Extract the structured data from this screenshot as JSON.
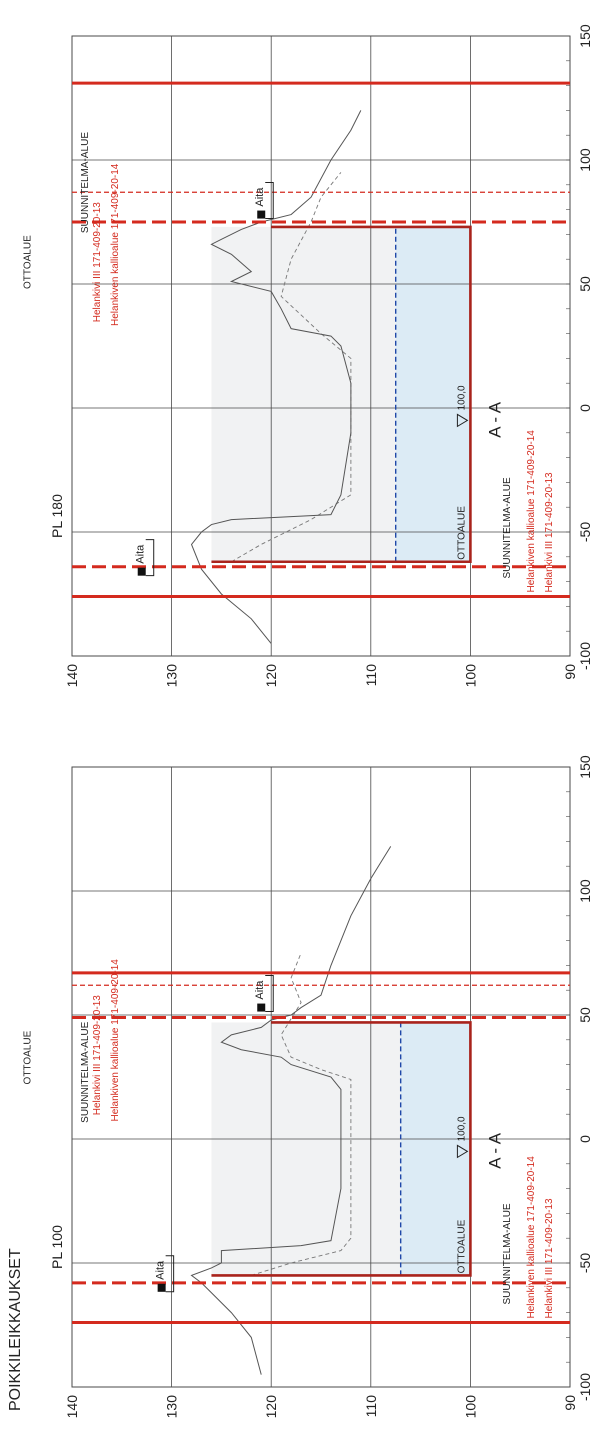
{
  "sheet_title": "POIKKILEIKKAUKSET",
  "legend_words": {
    "suunnitelma": "SUUNNITELMA-ALUE",
    "ottoalue": "OTTOALUE",
    "aita": "Aita",
    "kallio_14": "Helankiven kallioalue 171-409-20-14",
    "helankivi_13": "Helankivi III 171-409-20-13",
    "level": "100,0",
    "section_mark": "A - A"
  },
  "colors": {
    "grid": "#4a4a4a",
    "boundary": "#d42a1e",
    "dig": "#a9231c",
    "fill": "#dcebf5",
    "water": "#1f48a8",
    "ground": "#555555"
  },
  "chart_data": [
    {
      "type": "cross-section",
      "title": "PL 100",
      "xlim": [
        -100,
        150
      ],
      "ylim": [
        90,
        140
      ],
      "x_ticks": [
        "-100",
        "-50",
        "0",
        "50",
        "100",
        "150"
      ],
      "y_ticks": [
        "90",
        "100",
        "110",
        "120",
        "130",
        "140"
      ],
      "dig_area": {
        "x_left": -55,
        "x_right": 47,
        "bottom": 100,
        "water_level": 107
      },
      "fences": [
        {
          "x": -60,
          "elev": 131
        },
        {
          "x": 53,
          "elev": 121
        }
      ],
      "boundary_lines": [
        {
          "x": -74,
          "style": "solid",
          "name": "helankivi_13"
        },
        {
          "x": -58,
          "style": "dashed",
          "name": "kallio_14"
        },
        {
          "x": 49,
          "style": "dashed",
          "name": "kallio_14"
        },
        {
          "x": 62,
          "style": "thin-dashed",
          "name": "kallio_14"
        },
        {
          "x": 67,
          "style": "solid",
          "name": "helankivi_13"
        }
      ],
      "ground_profile": [
        [
          -95,
          121
        ],
        [
          -80,
          122
        ],
        [
          -70,
          124
        ],
        [
          -62,
          126
        ],
        [
          -58,
          127
        ],
        [
          -55,
          128
        ],
        [
          -52,
          126
        ],
        [
          -50,
          125
        ],
        [
          -45,
          125
        ],
        [
          -43,
          117
        ],
        [
          -41,
          114
        ],
        [
          -20,
          113
        ],
        [
          0,
          113
        ],
        [
          20,
          113
        ],
        [
          25,
          114
        ],
        [
          30,
          118
        ],
        [
          33,
          119
        ],
        [
          36,
          123
        ],
        [
          39,
          125
        ],
        [
          42,
          124
        ],
        [
          45,
          121
        ],
        [
          48,
          120
        ],
        [
          50,
          118
        ],
        [
          53,
          117
        ],
        [
          58,
          115
        ],
        [
          70,
          114
        ],
        [
          90,
          112
        ],
        [
          105,
          110
        ],
        [
          118,
          108
        ]
      ],
      "previous_profile": [
        [
          -55,
          122
        ],
        [
          -50,
          118
        ],
        [
          -45,
          113
        ],
        [
          -40,
          112
        ],
        [
          0,
          112
        ],
        [
          24,
          112
        ],
        [
          28,
          115
        ],
        [
          33,
          118
        ],
        [
          42,
          119
        ],
        [
          55,
          117
        ],
        [
          65,
          118
        ],
        [
          75,
          117
        ]
      ]
    },
    {
      "type": "cross-section",
      "title": "PL 180",
      "xlim": [
        -100,
        150
      ],
      "ylim": [
        90,
        140
      ],
      "x_ticks": [
        "-100",
        "-50",
        "0",
        "50",
        "100",
        "150"
      ],
      "y_ticks": [
        "90",
        "100",
        "110",
        "120",
        "130",
        "140"
      ],
      "dig_area": {
        "x_left": -62,
        "x_right": 73,
        "bottom": 100,
        "water_level": 107.5
      },
      "fences": [
        {
          "x": -66,
          "elev": 133
        },
        {
          "x": 78,
          "elev": 121
        }
      ],
      "boundary_lines": [
        {
          "x": -76,
          "style": "solid",
          "name": "helankivi_13"
        },
        {
          "x": -64,
          "style": "dashed",
          "name": "kallio_14"
        },
        {
          "x": 75,
          "style": "dashed",
          "name": "kallio_14"
        },
        {
          "x": 87,
          "style": "thin-dashed",
          "name": "helankivi_13"
        },
        {
          "x": 131,
          "style": "solid",
          "name": "suunnitelma"
        }
      ],
      "ground_profile": [
        [
          -95,
          120
        ],
        [
          -85,
          122
        ],
        [
          -75,
          125
        ],
        [
          -65,
          127
        ],
        [
          -55,
          128
        ],
        [
          -50,
          127
        ],
        [
          -47,
          126
        ],
        [
          -45,
          124
        ],
        [
          -43,
          114
        ],
        [
          -35,
          113
        ],
        [
          -10,
          112
        ],
        [
          10,
          112
        ],
        [
          25,
          113
        ],
        [
          29,
          114
        ],
        [
          32,
          118
        ],
        [
          40,
          119
        ],
        [
          47,
          120
        ],
        [
          51,
          124
        ],
        [
          55,
          122
        ],
        [
          62,
          124
        ],
        [
          66,
          126
        ],
        [
          68,
          125
        ],
        [
          72,
          123
        ],
        [
          75,
          121
        ],
        [
          78,
          118
        ],
        [
          85,
          116
        ],
        [
          100,
          114
        ],
        [
          112,
          112
        ],
        [
          120,
          111
        ]
      ],
      "previous_profile": [
        [
          -62,
          124
        ],
        [
          -55,
          121
        ],
        [
          -45,
          116
        ],
        [
          -35,
          112
        ],
        [
          20,
          112
        ],
        [
          30,
          115
        ],
        [
          45,
          119
        ],
        [
          60,
          118
        ],
        [
          75,
          116
        ],
        [
          85,
          115
        ],
        [
          95,
          113
        ]
      ]
    }
  ]
}
